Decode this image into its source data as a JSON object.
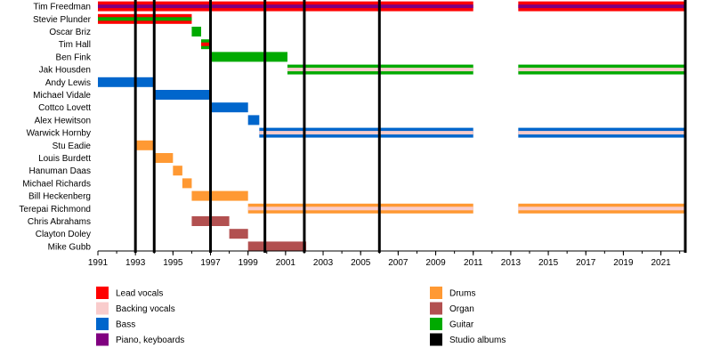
{
  "chart_data": {
    "type": "timeline",
    "x_range": [
      1991,
      2022.3
    ],
    "x_ticks": [
      "1991",
      "1993",
      "1995",
      "1997",
      "1999",
      "2001",
      "2003",
      "2005",
      "2007",
      "2009",
      "2011",
      "2013",
      "2015",
      "2017",
      "2019",
      "2021"
    ],
    "studio_albums": [
      1993,
      1994,
      1997,
      1999.9,
      2002,
      2006,
      2022.3
    ],
    "roles": {
      "lead": {
        "label": "Lead vocals",
        "color": "#ff0000"
      },
      "backing": {
        "label": "Backing vocals",
        "color": "#f9cccc"
      },
      "bass": {
        "label": "Bass",
        "color": "#0066cc"
      },
      "piano": {
        "label": "Piano, keyboards",
        "color": "#800080"
      },
      "drums": {
        "label": "Drums",
        "color": "#ff9933"
      },
      "organ": {
        "label": "Organ",
        "color": "#b25050"
      },
      "guitar": {
        "label": "Guitar",
        "color": "#00aa00"
      },
      "albums": {
        "label": "Studio albums",
        "color": "#000000"
      }
    },
    "legend": {
      "left": [
        "lead",
        "backing",
        "bass",
        "piano"
      ],
      "right": [
        "drums",
        "organ",
        "guitar",
        "albums"
      ]
    },
    "members": [
      {
        "name": "Tim Freedman",
        "bars": [
          {
            "start": 1991,
            "end": 2011,
            "main": "lead",
            "secondary": "piano"
          },
          {
            "start": 2013.4,
            "end": 2022.3,
            "main": "lead",
            "secondary": "piano"
          }
        ]
      },
      {
        "name": "Stevie Plunder",
        "bars": [
          {
            "start": 1991,
            "end": 1996,
            "main": "lead",
            "secondary": "guitar"
          }
        ]
      },
      {
        "name": "Oscar Briz",
        "bars": [
          {
            "start": 1996,
            "end": 1996.5,
            "main": "guitar"
          }
        ]
      },
      {
        "name": "Tim Hall",
        "bars": [
          {
            "start": 1996.5,
            "end": 1997,
            "main": "guitar",
            "secondary": "lead"
          }
        ]
      },
      {
        "name": "Ben Fink",
        "bars": [
          {
            "start": 1997,
            "end": 2001.1,
            "main": "guitar"
          }
        ]
      },
      {
        "name": "Jak Housden",
        "bars": [
          {
            "start": 2001.1,
            "end": 2011,
            "main": "guitar",
            "secondary": "backing"
          },
          {
            "start": 2013.4,
            "end": 2022.3,
            "main": "guitar",
            "secondary": "backing"
          }
        ]
      },
      {
        "name": "Andy Lewis",
        "bars": [
          {
            "start": 1991,
            "end": 1994,
            "main": "bass"
          }
        ]
      },
      {
        "name": "Michael Vidale",
        "bars": [
          {
            "start": 1994,
            "end": 1997,
            "main": "bass"
          }
        ]
      },
      {
        "name": "Cottco Lovett",
        "bars": [
          {
            "start": 1997,
            "end": 1999,
            "main": "bass"
          }
        ]
      },
      {
        "name": "Alex Hewitson",
        "bars": [
          {
            "start": 1999,
            "end": 1999.6,
            "main": "bass"
          }
        ]
      },
      {
        "name": "Warwick Hornby",
        "bars": [
          {
            "start": 1999.6,
            "end": 2011,
            "main": "bass",
            "secondary": "backing"
          },
          {
            "start": 2013.4,
            "end": 2022.3,
            "main": "bass",
            "secondary": "backing"
          }
        ]
      },
      {
        "name": "Stu Eadie",
        "bars": [
          {
            "start": 1993,
            "end": 1994,
            "main": "drums"
          }
        ]
      },
      {
        "name": "Louis Burdett",
        "bars": [
          {
            "start": 1994,
            "end": 1995,
            "main": "drums"
          }
        ]
      },
      {
        "name": "Hanuman Daas",
        "bars": [
          {
            "start": 1995,
            "end": 1995.5,
            "main": "drums"
          }
        ]
      },
      {
        "name": "Michael Richards",
        "bars": [
          {
            "start": 1995.5,
            "end": 1996,
            "main": "drums"
          }
        ]
      },
      {
        "name": "Bill Heckenberg",
        "bars": [
          {
            "start": 1996,
            "end": 1999,
            "main": "drums"
          }
        ]
      },
      {
        "name": "Terepai Richmond",
        "bars": [
          {
            "start": 1999,
            "end": 2011,
            "main": "drums",
            "secondary": "backing"
          },
          {
            "start": 2013.4,
            "end": 2022.3,
            "main": "drums",
            "secondary": "backing"
          }
        ]
      },
      {
        "name": "Chris Abrahams",
        "bars": [
          {
            "start": 1996,
            "end": 1998,
            "main": "organ"
          }
        ]
      },
      {
        "name": "Clayton Doley",
        "bars": [
          {
            "start": 1998,
            "end": 1999,
            "main": "organ"
          }
        ]
      },
      {
        "name": "Mike Gubb",
        "bars": [
          {
            "start": 1999,
            "end": 2002.1,
            "main": "organ"
          }
        ]
      }
    ]
  }
}
